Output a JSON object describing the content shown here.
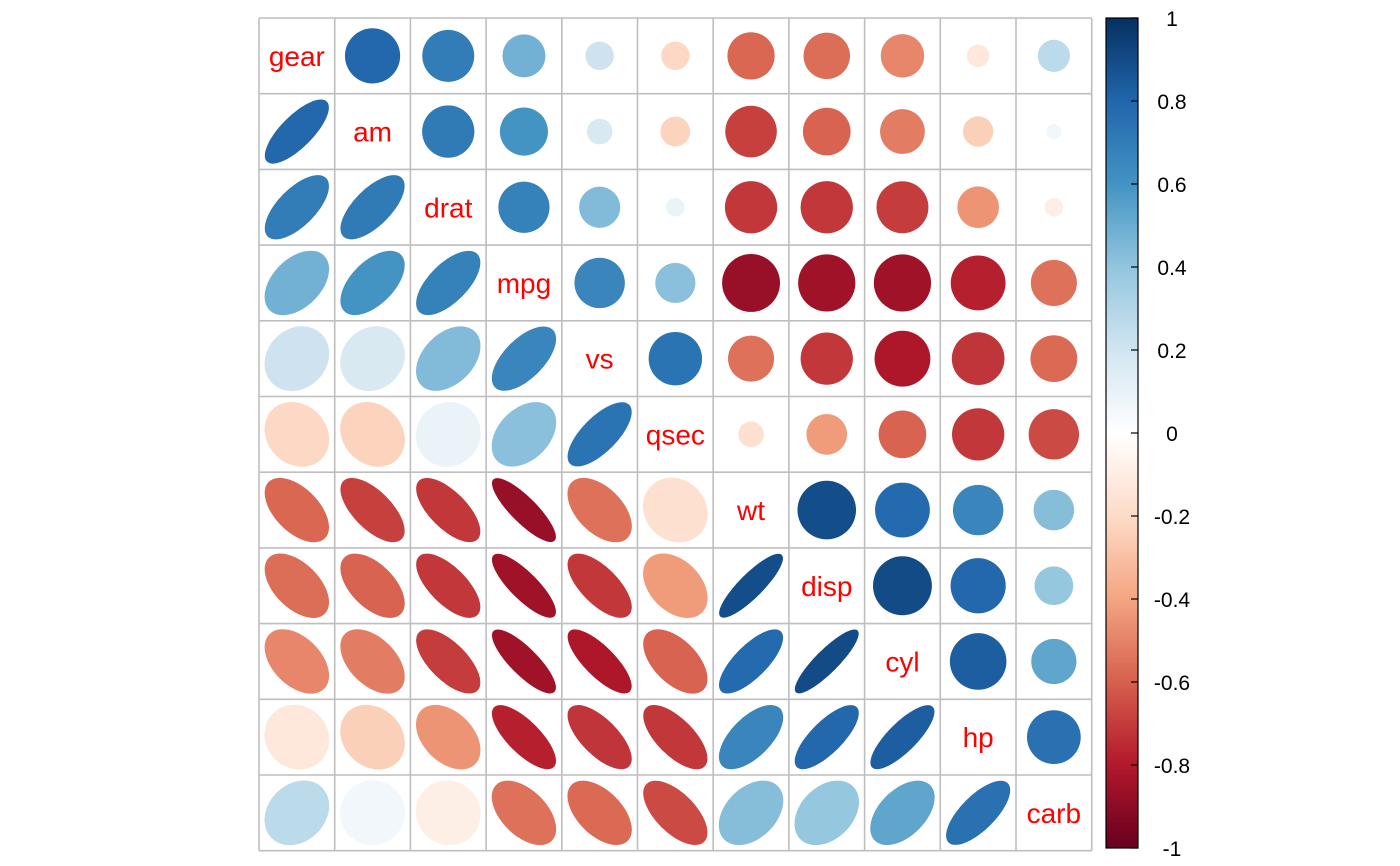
{
  "chart_data": {
    "type": "heatmap",
    "title": "",
    "layout": "mixed: lower triangle ellipses, upper triangle circles, variable names on diagonal",
    "variables": [
      "gear",
      "am",
      "drat",
      "mpg",
      "vs",
      "qsec",
      "wt",
      "disp",
      "cyl",
      "hp",
      "carb"
    ],
    "matrix": [
      [
        1.0,
        0.79,
        0.7,
        0.48,
        0.21,
        -0.21,
        -0.58,
        -0.56,
        -0.49,
        -0.13,
        0.27
      ],
      [
        0.79,
        1.0,
        0.71,
        0.6,
        0.17,
        -0.23,
        -0.69,
        -0.59,
        -0.52,
        -0.24,
        0.06
      ],
      [
        0.7,
        0.71,
        1.0,
        0.68,
        0.44,
        0.09,
        -0.71,
        -0.71,
        -0.7,
        -0.45,
        -0.09
      ],
      [
        0.48,
        0.6,
        0.68,
        1.0,
        0.66,
        0.42,
        -0.87,
        -0.85,
        -0.85,
        -0.78,
        -0.55
      ],
      [
        0.21,
        0.17,
        0.44,
        0.66,
        1.0,
        0.74,
        -0.55,
        -0.71,
        -0.81,
        -0.72,
        -0.57
      ],
      [
        -0.21,
        -0.23,
        0.09,
        0.42,
        0.74,
        1.0,
        -0.17,
        -0.43,
        -0.59,
        -0.71,
        -0.66
      ],
      [
        -0.58,
        -0.69,
        -0.71,
        -0.87,
        -0.55,
        -0.17,
        1.0,
        0.89,
        0.78,
        0.66,
        0.43
      ],
      [
        -0.56,
        -0.59,
        -0.71,
        -0.85,
        -0.71,
        -0.43,
        0.89,
        1.0,
        0.9,
        0.79,
        0.39
      ],
      [
        -0.49,
        -0.52,
        -0.7,
        -0.85,
        -0.81,
        -0.59,
        0.78,
        0.9,
        1.0,
        0.83,
        0.53
      ],
      [
        -0.13,
        -0.24,
        -0.45,
        -0.78,
        -0.72,
        -0.71,
        0.66,
        0.79,
        0.83,
        1.0,
        0.75
      ],
      [
        0.27,
        0.06,
        -0.09,
        -0.55,
        -0.57,
        -0.66,
        0.43,
        0.39,
        0.53,
        0.75,
        1.0
      ]
    ],
    "colorbar": {
      "range": [
        -1,
        1
      ],
      "ticks": [
        "1",
        "0.8",
        "0.6",
        "0.4",
        "0.2",
        "0",
        "-0.2",
        "-0.4",
        "-0.6",
        "-0.8",
        "-1"
      ],
      "placement": "right"
    },
    "colors": {
      "label": "#ff0000",
      "grid": "#bebebe",
      "palette": [
        "#67001f",
        "#b2182b",
        "#d6604d",
        "#f4a582",
        "#fddbc7",
        "#ffffff",
        "#d1e5f0",
        "#92c5de",
        "#4393c3",
        "#2166ac",
        "#053061"
      ]
    }
  }
}
